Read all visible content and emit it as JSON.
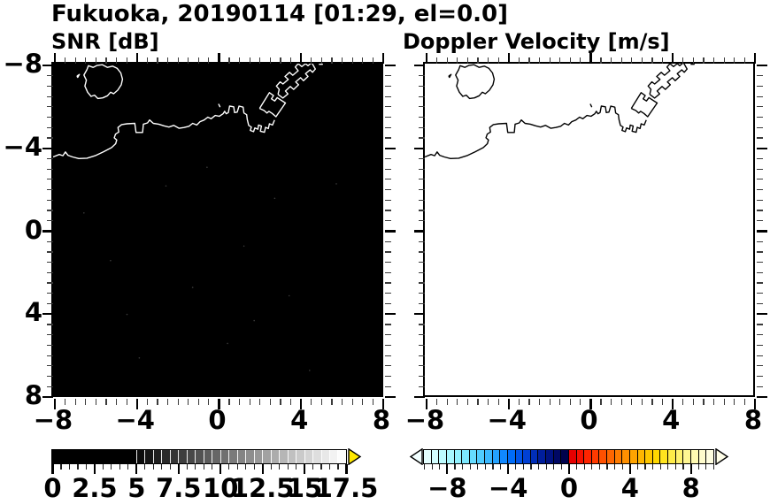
{
  "title": "Fukuoka, 20190114 [01:29, el=0.0]",
  "chart_data": {
    "type": "heatmap",
    "description": "Two-panel radar PPI display (cartesian, km east/north of radar) over Fukuoka / Hakata Bay with coastline overlay; both fields empty (no echoes).",
    "axes": {
      "xlim": [
        -8,
        8
      ],
      "ylim": [
        -8,
        8
      ],
      "major_ticks": [
        -8,
        -4,
        0,
        4,
        8
      ],
      "minor_tick_step": 0.5,
      "x_tick_labels": [
        "−8",
        "−4",
        "0",
        "4",
        "8"
      ],
      "y_tick_labels": [
        "8",
        "4",
        "0",
        "−4",
        "−8"
      ],
      "ticks_direction": "out",
      "grid": false
    },
    "panels": [
      {
        "id": "snr",
        "subtitle": "SNR [dB]",
        "background": "#000000",
        "coastline_color": "#ffffff",
        "field": "uniform minimum (all pixels at/below 0 dB, rendered black)",
        "speckle_color": "#3a3a3a",
        "colorbar": {
          "range": [
            0,
            17.5
          ],
          "solid_low_end": 5,
          "major_tick_values": [
            0,
            2.5,
            5,
            7.5,
            10,
            12.5,
            15,
            17.5
          ],
          "tick_labels": [
            "0",
            "2.5",
            "5",
            "7.5",
            "10",
            "12.5",
            "15",
            "17.5"
          ],
          "minor_tick_step": 0.5,
          "over_arrow_color": "#ffe800",
          "cells": [
            "#0c0c0c",
            "#161616",
            "#202020",
            "#2a2a2a",
            "#343434",
            "#3e3e3e",
            "#484848",
            "#525252",
            "#5c5c5c",
            "#666666",
            "#707070",
            "#7a7a7a",
            "#848484",
            "#8e8e8e",
            "#989898",
            "#a2a2a2",
            "#acacac",
            "#b6b6b6",
            "#c0c0c0",
            "#cacaca",
            "#d4d4d4",
            "#dedede",
            "#e8e8e8",
            "#f2f2f2",
            "#fcfcfc"
          ]
        }
      },
      {
        "id": "velocity",
        "subtitle": "Doppler Velocity [m/s]",
        "background": "#ffffff",
        "coastline_color": "#000000",
        "field": "empty (no echoes, rendered white)",
        "colorbar": {
          "range": [
            -9.5,
            9.5
          ],
          "major_tick_values": [
            -8,
            -4,
            0,
            4,
            8
          ],
          "tick_labels": [
            "−8",
            "−4",
            "0",
            "4",
            "8"
          ],
          "minor_tick_step": 0.5,
          "under_arrow_color": "#f2ffff",
          "over_arrow_color": "#fffee8",
          "cells": [
            "#e4ffff",
            "#d2feff",
            "#bdfcff",
            "#a8f8ff",
            "#92f2ff",
            "#7ce8ff",
            "#66dcff",
            "#50ccff",
            "#3ab8ff",
            "#24a2ff",
            "#1088ff",
            "#006cf8",
            "#0054e8",
            "#0040d4",
            "#002eb8",
            "#001e9c",
            "#001280",
            "#000864",
            "#00024c",
            "#e60000",
            "#f51000",
            "#ff2400",
            "#ff3a00",
            "#ff5000",
            "#ff6600",
            "#ff7c00",
            "#ff9000",
            "#ffa400",
            "#ffb600",
            "#ffc800",
            "#ffd800",
            "#ffe41e",
            "#ffec48",
            "#fff26e",
            "#fff692",
            "#fffab2",
            "#fffccc",
            "#fffee0"
          ]
        }
      }
    ],
    "coastline_paths": [
      {
        "name": "nokonoshima-island",
        "points": [
          [
            -6.35,
            7.72
          ],
          [
            -6.28,
            7.9
          ],
          [
            -6.05,
            7.82
          ],
          [
            -5.85,
            7.92
          ],
          [
            -5.6,
            7.95
          ],
          [
            -5.35,
            7.82
          ],
          [
            -5.1,
            7.88
          ],
          [
            -4.88,
            7.78
          ],
          [
            -4.7,
            7.55
          ],
          [
            -4.62,
            7.25
          ],
          [
            -4.68,
            6.98
          ],
          [
            -4.85,
            6.72
          ],
          [
            -5.05,
            6.55
          ],
          [
            -5.2,
            6.62
          ],
          [
            -5.35,
            6.45
          ],
          [
            -5.58,
            6.35
          ],
          [
            -5.82,
            6.32
          ],
          [
            -5.98,
            6.48
          ],
          [
            -6.15,
            6.42
          ],
          [
            -6.32,
            6.62
          ],
          [
            -6.45,
            6.92
          ],
          [
            -6.38,
            7.2
          ],
          [
            -6.5,
            7.45
          ],
          [
            -6.35,
            7.72
          ]
        ]
      },
      {
        "name": "islet-dot",
        "points": [
          [
            -6.84,
            7.4
          ],
          [
            -6.72,
            7.48
          ],
          [
            -6.8,
            7.34
          ],
          [
            -6.84,
            7.4
          ]
        ]
      },
      {
        "name": "main-coast",
        "points": [
          [
            -8,
            3.5
          ],
          [
            -7.7,
            3.62
          ],
          [
            -7.52,
            3.56
          ],
          [
            -7.4,
            3.74
          ],
          [
            -7.28,
            3.58
          ],
          [
            -7.05,
            3.5
          ],
          [
            -6.75,
            3.42
          ],
          [
            -6.35,
            3.44
          ],
          [
            -5.95,
            3.56
          ],
          [
            -5.55,
            3.74
          ],
          [
            -5.15,
            3.95
          ],
          [
            -4.95,
            4.14
          ],
          [
            -4.9,
            4.32
          ],
          [
            -5.02,
            4.42
          ],
          [
            -4.96,
            4.6
          ],
          [
            -4.8,
            4.7
          ],
          [
            -4.84,
            4.92
          ],
          [
            -4.66,
            5.06
          ],
          [
            -4.4,
            5.1
          ],
          [
            -4.02,
            5.12
          ],
          [
            -3.96,
            4.68
          ],
          [
            -3.64,
            4.68
          ],
          [
            -3.6,
            5.08
          ],
          [
            -3.4,
            5.14
          ],
          [
            -3.3,
            5.28
          ],
          [
            -3.12,
            5.12
          ],
          [
            -2.86,
            5.08
          ],
          [
            -2.6,
            5.0
          ],
          [
            -2.36,
            4.94
          ],
          [
            -2.12,
            5.02
          ],
          [
            -1.86,
            4.88
          ],
          [
            -1.62,
            4.92
          ],
          [
            -1.38,
            4.98
          ],
          [
            -1.2,
            5.12
          ],
          [
            -1.0,
            5.04
          ],
          [
            -0.84,
            5.2
          ],
          [
            -0.64,
            5.28
          ],
          [
            -0.46,
            5.42
          ],
          [
            -0.3,
            5.34
          ],
          [
            -0.1,
            5.5
          ],
          [
            0.1,
            5.46
          ],
          [
            0.28,
            5.58
          ],
          [
            0.36,
            5.7
          ],
          [
            0.44,
            5.58
          ],
          [
            0.54,
            5.64
          ],
          [
            0.6,
            5.95
          ],
          [
            0.8,
            5.92
          ],
          [
            0.84,
            5.64
          ],
          [
            0.97,
            5.66
          ],
          [
            1.06,
            5.95
          ],
          [
            1.26,
            5.9
          ],
          [
            1.3,
            5.62
          ],
          [
            1.43,
            5.54
          ],
          [
            1.46,
            5.3
          ],
          [
            1.53,
            5.02
          ],
          [
            1.66,
            4.94
          ],
          [
            1.61,
            4.78
          ],
          [
            1.77,
            4.72
          ],
          [
            1.83,
            4.9
          ],
          [
            1.98,
            4.84
          ],
          [
            2.01,
            5.04
          ],
          [
            2.15,
            4.99
          ],
          [
            2.1,
            4.74
          ],
          [
            2.3,
            4.69
          ],
          [
            2.35,
            4.93
          ],
          [
            2.49,
            4.87
          ],
          [
            2.54,
            5.1
          ],
          [
            2.69,
            5.04
          ],
          [
            2.79,
            5.28
          ]
        ]
      },
      {
        "name": "harbor-block",
        "points": [
          [
            2.06,
            5.84
          ],
          [
            2.28,
            5.74
          ],
          [
            2.42,
            5.62
          ],
          [
            2.52,
            5.7
          ],
          [
            2.68,
            5.6
          ],
          [
            2.86,
            5.44
          ],
          [
            3.32,
            6.1
          ],
          [
            2.92,
            6.36
          ],
          [
            2.8,
            6.2
          ],
          [
            2.64,
            6.3
          ],
          [
            2.74,
            6.46
          ],
          [
            2.54,
            6.6
          ],
          [
            2.06,
            5.84
          ]
        ]
      },
      {
        "name": "harbor-piers",
        "points": [
          [
            2.96,
            6.52
          ],
          [
            3.2,
            6.34
          ],
          [
            3.44,
            6.54
          ],
          [
            3.32,
            6.68
          ],
          [
            3.56,
            6.9
          ],
          [
            3.72,
            6.76
          ],
          [
            3.96,
            6.98
          ],
          [
            3.82,
            7.12
          ],
          [
            4.06,
            7.32
          ],
          [
            4.2,
            7.18
          ],
          [
            4.42,
            7.38
          ],
          [
            4.3,
            7.52
          ],
          [
            4.52,
            7.7
          ],
          [
            4.64,
            7.58
          ],
          [
            4.78,
            7.74
          ],
          [
            4.6,
            8.05
          ],
          [
            4.42,
            7.9
          ],
          [
            4.3,
            8.0
          ],
          [
            4.12,
            7.86
          ],
          [
            3.94,
            8.0
          ],
          [
            3.8,
            7.84
          ],
          [
            3.94,
            7.66
          ],
          [
            3.68,
            7.44
          ],
          [
            3.52,
            7.58
          ],
          [
            3.3,
            7.38
          ],
          [
            3.46,
            7.24
          ],
          [
            3.2,
            7.02
          ],
          [
            3.06,
            7.12
          ],
          [
            2.88,
            6.92
          ],
          [
            3.02,
            6.76
          ],
          [
            2.96,
            6.52
          ]
        ]
      },
      {
        "name": "small-islet-mark",
        "points": [
          [
            0.06,
            6.06
          ],
          [
            0.14,
            5.9
          ]
        ]
      },
      {
        "name": "top-edge-mark",
        "points": [
          [
            4.95,
            7.97
          ],
          [
            5.12,
            7.97
          ],
          [
            5.12,
            8.1
          ]
        ]
      }
    ],
    "speckles": [
      [
        -2.5,
        2.1
      ],
      [
        1.3,
        -0.8
      ],
      [
        3.5,
        -3.2
      ],
      [
        -5.2,
        -1.5
      ],
      [
        0.5,
        -5.5
      ],
      [
        -3.8,
        -6.2
      ],
      [
        2.8,
        1.5
      ],
      [
        -1.2,
        -2.8
      ],
      [
        4.5,
        -6.8
      ],
      [
        -6.5,
        0.8
      ],
      [
        1.8,
        -4.4
      ],
      [
        -0.5,
        3.0
      ],
      [
        5.8,
        2.2
      ],
      [
        -4.4,
        -4.1
      ]
    ]
  }
}
